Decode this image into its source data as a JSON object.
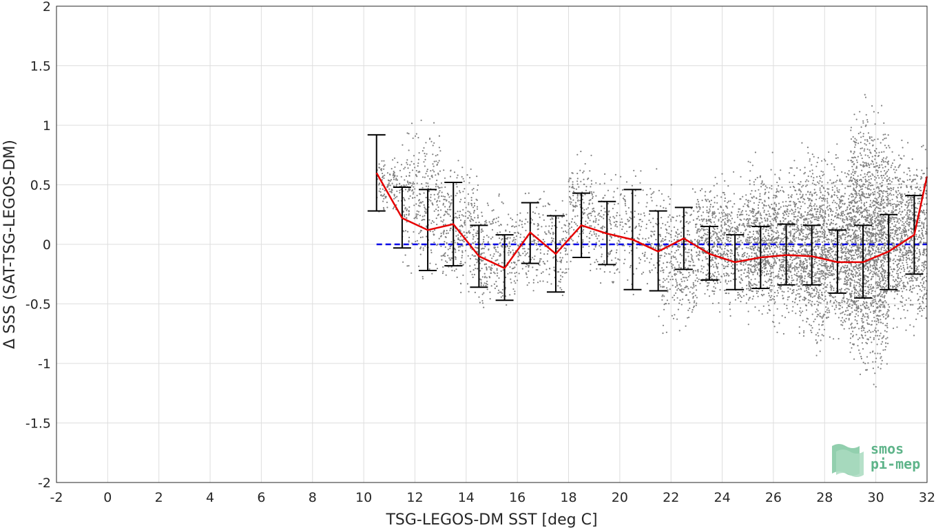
{
  "chart_data": {
    "type": "scatter",
    "xlabel": "TSG-LEGOS-DM SST [deg C]",
    "ylabel": "Δ SSS (SAT-TSG-LEGOS-DM)",
    "xlim": [
      -2,
      32
    ],
    "ylim": [
      -2,
      2
    ],
    "x_ticks": [
      -2,
      0,
      2,
      4,
      6,
      8,
      10,
      12,
      14,
      16,
      18,
      20,
      22,
      24,
      26,
      28,
      30,
      32
    ],
    "y_ticks": [
      -2,
      -1.5,
      -1,
      -0.5,
      0,
      0.5,
      1,
      1.5,
      2
    ],
    "x_tick_labels": [
      "-2",
      "0",
      "2",
      "4",
      "6",
      "8",
      "10",
      "12",
      "14",
      "16",
      "18",
      "20",
      "22",
      "24",
      "26",
      "28",
      "30",
      "32"
    ],
    "y_tick_labels": [
      "-2",
      "-1.5",
      "-1",
      "-0.5",
      "0",
      "0.5",
      "1",
      "1.5",
      "2"
    ],
    "grid": true,
    "reference_line": {
      "y": 0,
      "style": "dashed",
      "color": "#0000e6"
    },
    "scatter_color": "#808080",
    "mean_line_color": "#e60000",
    "errorbar_color": "#000000",
    "binned": {
      "x": [
        10.5,
        11.5,
        12.5,
        13.5,
        14.5,
        15.5,
        16.5,
        17.5,
        18.5,
        19.5,
        20.5,
        21.5,
        22.5,
        23.5,
        24.5,
        25.5,
        26.5,
        27.5,
        28.5,
        29.5,
        30.5,
        31.5
      ],
      "mean": [
        0.6,
        0.22,
        0.12,
        0.17,
        -0.1,
        -0.2,
        0.1,
        -0.08,
        0.16,
        0.09,
        0.04,
        -0.06,
        0.05,
        -0.08,
        -0.15,
        -0.11,
        -0.09,
        -0.1,
        -0.15,
        -0.15,
        -0.06,
        0.08
      ],
      "upper": [
        0.92,
        0.48,
        0.46,
        0.52,
        0.16,
        0.08,
        0.35,
        0.24,
        0.43,
        0.36,
        0.46,
        0.28,
        0.31,
        0.15,
        0.08,
        0.15,
        0.17,
        0.16,
        0.12,
        0.16,
        0.25,
        0.41
      ],
      "lower": [
        0.28,
        -0.03,
        -0.22,
        -0.18,
        -0.36,
        -0.47,
        -0.16,
        -0.4,
        -0.11,
        -0.17,
        -0.38,
        -0.39,
        -0.21,
        -0.3,
        -0.38,
        -0.37,
        -0.34,
        -0.34,
        -0.41,
        -0.45,
        -0.38,
        -0.25
      ]
    },
    "mean_line_end": {
      "x": 32,
      "y": 0.57
    },
    "scatter_clusters": [
      {
        "x": [
          10.5,
          11.5
        ],
        "y": [
          0.2,
          0.8
        ],
        "n": 120
      },
      {
        "x": [
          11.5,
          13.0
        ],
        "y": [
          -0.4,
          1.2
        ],
        "n": 300
      },
      {
        "x": [
          13.0,
          14.5
        ],
        "y": [
          -0.6,
          0.8
        ],
        "n": 320
      },
      {
        "x": [
          14.5,
          16.0
        ],
        "y": [
          -0.7,
          0.5
        ],
        "n": 260
      },
      {
        "x": [
          16.0,
          18.0
        ],
        "y": [
          -0.6,
          0.6
        ],
        "n": 260
      },
      {
        "x": [
          18.0,
          19.0
        ],
        "y": [
          -0.3,
          0.9
        ],
        "n": 180
      },
      {
        "x": [
          19.0,
          21.5
        ],
        "y": [
          -0.5,
          0.75
        ],
        "n": 300
      },
      {
        "x": [
          21.5,
          23.0
        ],
        "y": [
          -0.9,
          0.6
        ],
        "n": 350
      },
      {
        "x": [
          23.0,
          25.0
        ],
        "y": [
          -0.7,
          0.7
        ],
        "n": 700
      },
      {
        "x": [
          25.0,
          27.0
        ],
        "y": [
          -0.8,
          0.8
        ],
        "n": 1100
      },
      {
        "x": [
          27.0,
          29.0
        ],
        "y": [
          -1.0,
          0.95
        ],
        "n": 1400
      },
      {
        "x": [
          29.0,
          30.5
        ],
        "y": [
          -1.35,
          1.4
        ],
        "n": 1700
      },
      {
        "x": [
          30.5,
          32.0
        ],
        "y": [
          -0.9,
          1.0
        ],
        "n": 900
      }
    ]
  },
  "logo": {
    "line1": "smos",
    "line2": "pi-mep",
    "color": "#5fb48a"
  }
}
